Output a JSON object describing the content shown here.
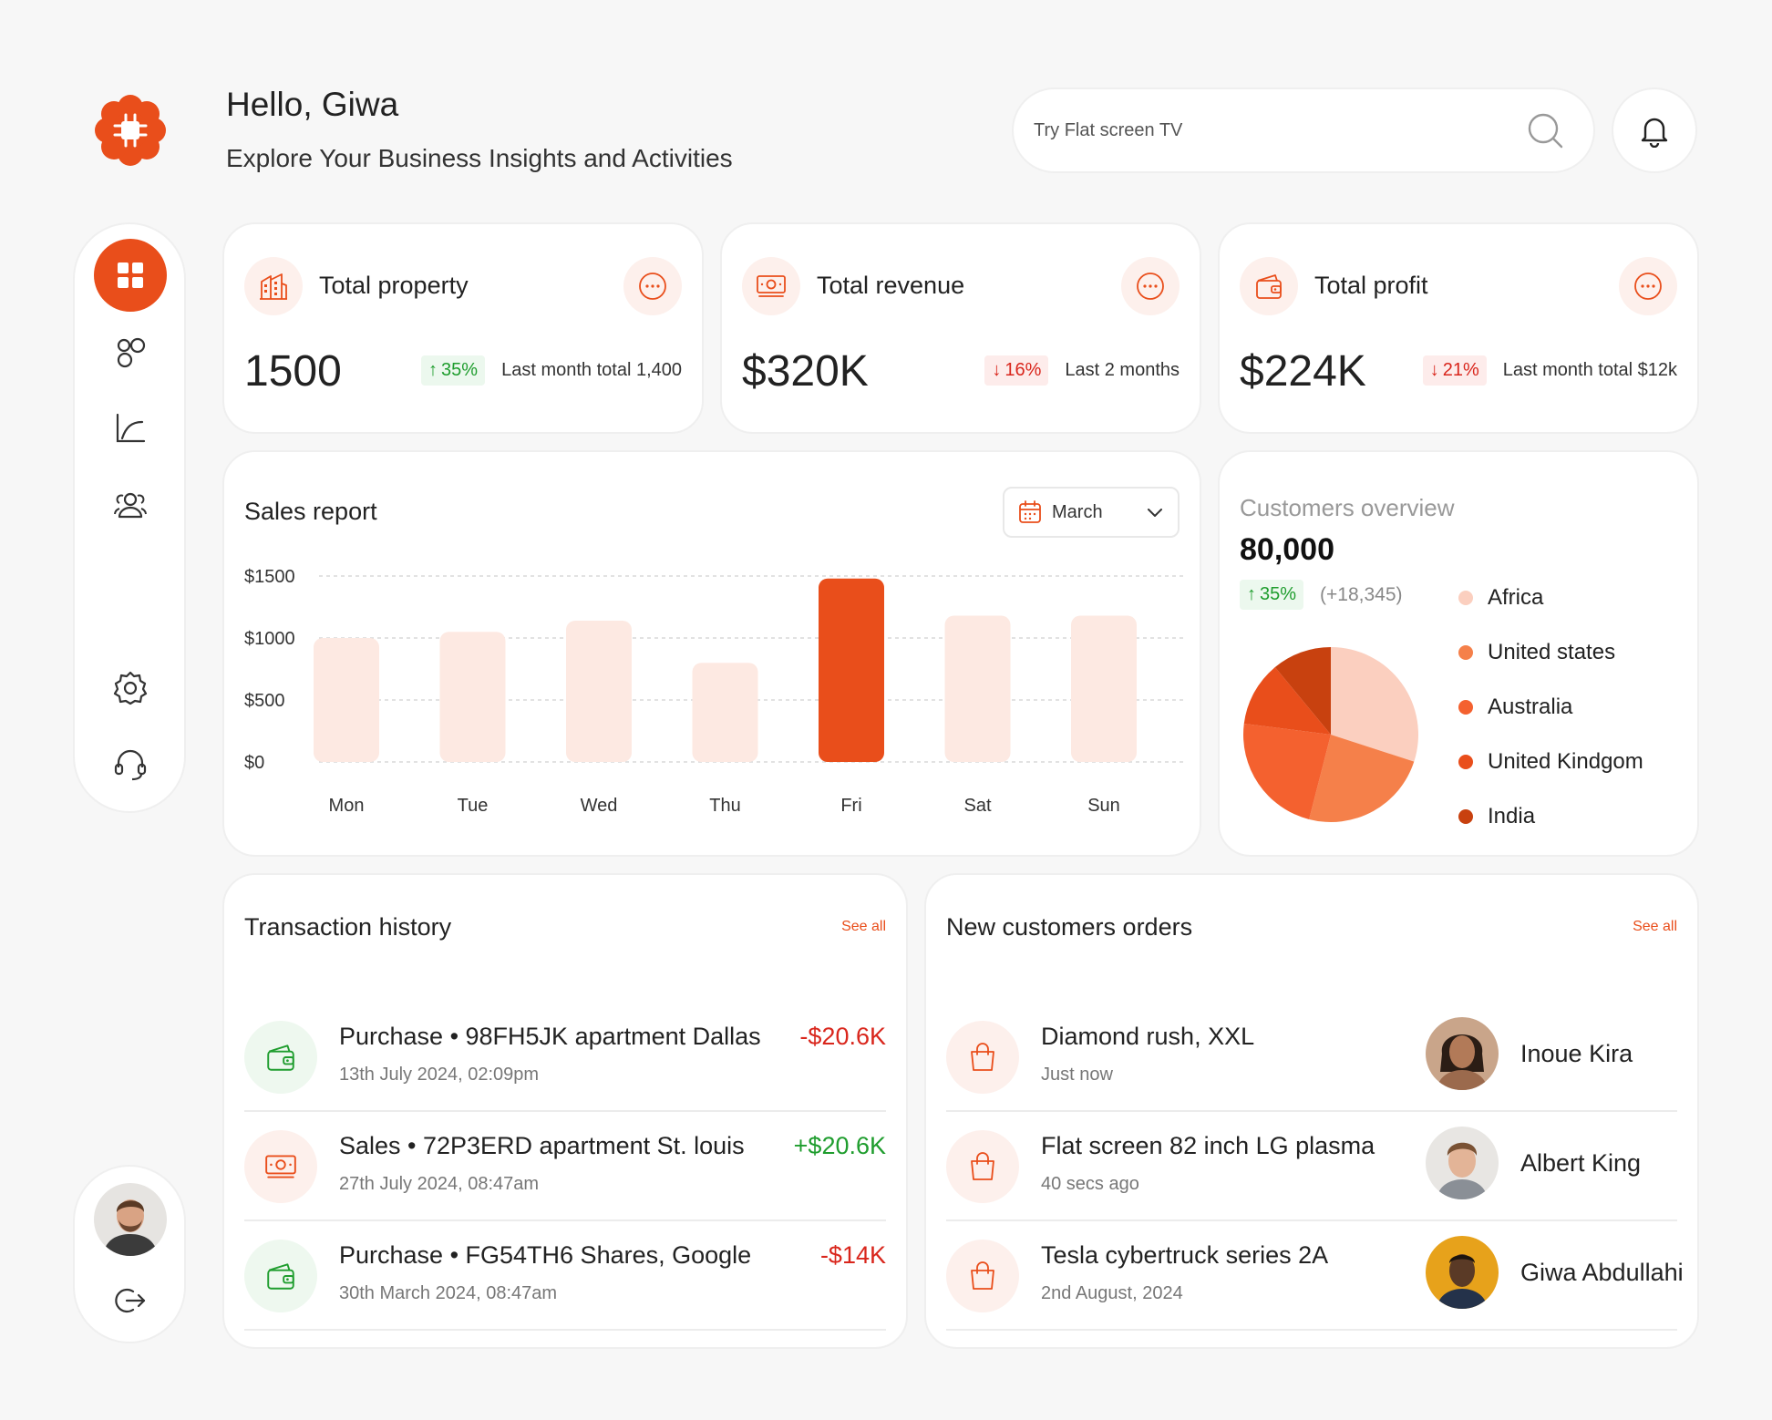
{
  "greeting": {
    "title": "Hello, Giwa",
    "subtitle": "Explore Your Business Insights and Activities"
  },
  "search": {
    "placeholder": "Try Flat screen TV"
  },
  "icons": {
    "logo": "flower-logo",
    "search": "search-icon",
    "bell": "bell-icon",
    "nav": [
      "grid-icon",
      "bubbles-icon",
      "chart-icon",
      "users-icon",
      "gear-icon",
      "headset-icon"
    ],
    "logout": "logout-icon"
  },
  "colors": {
    "accent": "#e94e1b",
    "bar_muted": "#fde9e2",
    "positive": "#1f9d2e",
    "negative": "#d9261c"
  },
  "stats": [
    {
      "title": "Total property",
      "value": "1500",
      "change": "35%",
      "direction": "up",
      "note": "Last month total 1,400",
      "icon": "building-icon"
    },
    {
      "title": "Total revenue",
      "value": "$320K",
      "change": "16%",
      "direction": "down",
      "note": "Last 2 months",
      "icon": "money-icon"
    },
    {
      "title": "Total profit",
      "value": "$224K",
      "change": "21%",
      "direction": "down",
      "note": "Last month total $12k",
      "icon": "wallet-icon"
    }
  ],
  "sales": {
    "title": "Sales report",
    "month": "March"
  },
  "chart_data": {
    "type": "bar",
    "categories": [
      "Mon",
      "Tue",
      "Wed",
      "Thu",
      "Fri",
      "Sat",
      "Sun"
    ],
    "values": [
      1000,
      1050,
      1140,
      800,
      1480,
      1180,
      1180
    ],
    "highlight_index": 4,
    "ylim": [
      0,
      1500
    ],
    "yticks": [
      "$0",
      "$500",
      "$1000",
      "$1500"
    ],
    "grid": true,
    "title": "",
    "xlabel": "",
    "ylabel": ""
  },
  "customers": {
    "title": "Customers overview",
    "total": "80,000",
    "change": "35%",
    "delta": "(+18,345)",
    "segments": [
      {
        "name": "Africa",
        "value": 30,
        "color": "#fbcfbf"
      },
      {
        "name": "United states",
        "value": 24,
        "color": "#f5804a"
      },
      {
        "name": "Australia",
        "value": 23,
        "color": "#f4612f"
      },
      {
        "name": "United Kindgom",
        "value": 12,
        "color": "#e94e1b"
      },
      {
        "name": "India",
        "value": 11,
        "color": "#c8410f"
      }
    ]
  },
  "transactions": {
    "title": "Transaction history",
    "see_all": "See all",
    "items": [
      {
        "title": "Purchase • 98FH5JK apartment Dallas",
        "date": "13th July 2024, 02:09pm",
        "amount": "-$20.6K",
        "sign": "neg",
        "icon": "wallet-icon"
      },
      {
        "title": "Sales • 72P3ERD apartment St. louis",
        "date": "27th July 2024, 08:47am",
        "amount": "+$20.6K",
        "sign": "pos",
        "icon": "money-icon"
      },
      {
        "title": "Purchase • FG54TH6 Shares, Google",
        "date": "30th March 2024, 08:47am",
        "amount": "-$14K",
        "sign": "neg",
        "icon": "wallet-icon"
      }
    ]
  },
  "orders": {
    "title": "New customers orders",
    "see_all": "See all",
    "items": [
      {
        "product": "Diamond rush, XXL",
        "time": "Just now",
        "customer": "Inoue Kira",
        "icon": "bag-icon"
      },
      {
        "product": "Flat screen 82 inch LG plasma",
        "time": "40 secs ago",
        "customer": "Albert King",
        "icon": "bag-icon"
      },
      {
        "product": "Tesla cybertruck series 2A",
        "time": "2nd August, 2024",
        "customer": "Giwa Abdullahi",
        "icon": "bag-icon"
      }
    ]
  }
}
